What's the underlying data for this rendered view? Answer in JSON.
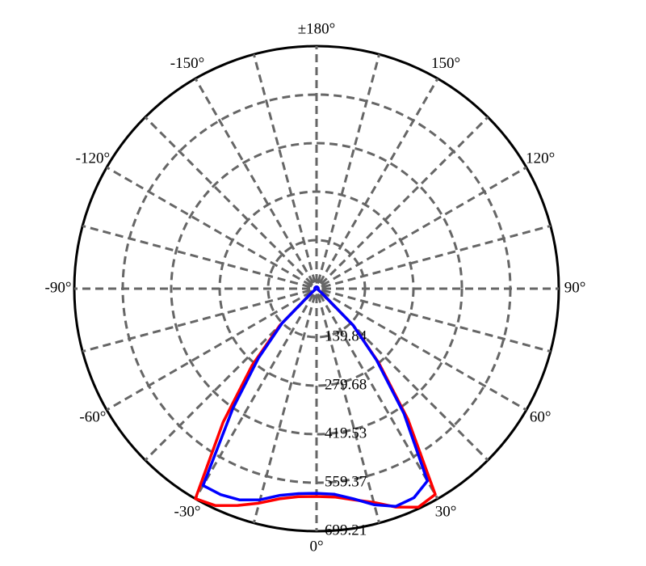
{
  "chart_data": {
    "type": "polar",
    "xticks": [
      {
        "value": 0,
        "label": "0°"
      },
      {
        "value": 30,
        "label": "30°"
      },
      {
        "value": 60,
        "label": "60°"
      },
      {
        "value": 90,
        "label": "90°"
      },
      {
        "value": 120,
        "label": "120°"
      },
      {
        "value": 150,
        "label": "150°"
      },
      {
        "value": 180,
        "label": "±180°"
      },
      {
        "value": -150,
        "label": "-150°"
      },
      {
        "value": -120,
        "label": "-120°"
      },
      {
        "value": -90,
        "label": "-90°"
      },
      {
        "value": -60,
        "label": "-60°"
      },
      {
        "value": -30,
        "label": "-30°"
      }
    ],
    "ylim": [
      0,
      699.21
    ],
    "yticks": [
      139.84,
      279.68,
      419.53,
      559.37,
      699.21
    ],
    "x": [
      -180,
      -175,
      -170,
      -165,
      -160,
      -155,
      -150,
      -145,
      -140,
      -135,
      -130,
      -125,
      -120,
      -115,
      -110,
      -105,
      -100,
      -95,
      -90,
      -85,
      -80,
      -75,
      -70,
      -65,
      -60,
      -55,
      -50,
      -45,
      -40,
      -35,
      -30,
      -25,
      -20,
      -15,
      -10,
      -5,
      0,
      5,
      10,
      15,
      20,
      25,
      30,
      35,
      40,
      45,
      50,
      55,
      60,
      65,
      70,
      75,
      80,
      85,
      90,
      95,
      100,
      105,
      110,
      115,
      120,
      125,
      130,
      135,
      140,
      145,
      150,
      155,
      160,
      165,
      170,
      175,
      180
    ],
    "series": [
      {
        "color": "#ff0000",
        "values": [
          5,
          5,
          5,
          5,
          5,
          5,
          5,
          5,
          5,
          5,
          5,
          5,
          5,
          5,
          5,
          5,
          5,
          5,
          5,
          5,
          5,
          5,
          5,
          5,
          5,
          5,
          20,
          150,
          290,
          470,
          699,
          690,
          665,
          640,
          615,
          602,
          599,
          603,
          618,
          638,
          670,
          695,
          685,
          460,
          280,
          150,
          20,
          5,
          5,
          5,
          5,
          5,
          5,
          5,
          5,
          5,
          5,
          5,
          5,
          5,
          5,
          5,
          5,
          5,
          5,
          5,
          5,
          5,
          5,
          5,
          5,
          5,
          5
        ]
      },
      {
        "color": "#0000ff",
        "values": [
          5,
          5,
          5,
          5,
          5,
          5,
          5,
          5,
          5,
          5,
          5,
          5,
          5,
          5,
          5,
          5,
          5,
          5,
          5,
          5,
          5,
          5,
          5,
          5,
          5,
          5,
          20,
          140,
          260,
          420,
          655,
          655,
          648,
          630,
          605,
          593,
          590,
          595,
          615,
          645,
          668,
          665,
          640,
          440,
          270,
          150,
          20,
          5,
          5,
          5,
          5,
          5,
          5,
          5,
          5,
          5,
          5,
          5,
          5,
          5,
          5,
          5,
          5,
          5,
          5,
          5,
          5,
          5,
          5,
          5,
          5,
          5,
          5
        ]
      }
    ]
  }
}
